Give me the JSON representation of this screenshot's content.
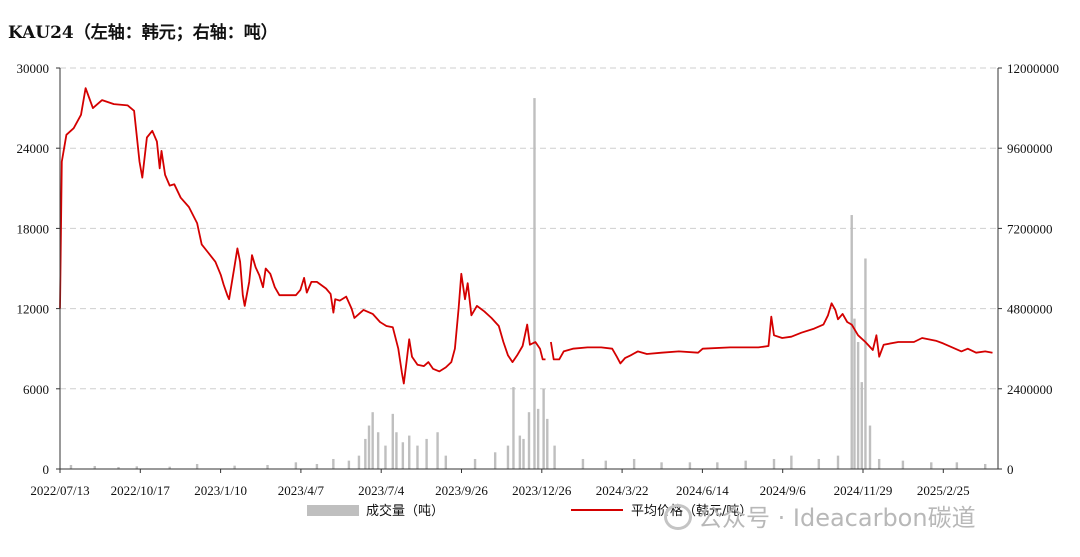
{
  "title": "KAU24（左轴：韩元；右轴：吨）",
  "watermark": "公众号 · Ideacarbon碳道",
  "chart_data": {
    "type": "line+bar",
    "title": "KAU24（左轴：韩元；右轴：吨）",
    "x_tick_labels": [
      "2022/07/13",
      "2022/10/17",
      "2023/1/10",
      "2023/4/7",
      "2023/7/4",
      "2023/9/26",
      "2023/12/26",
      "2024/3/22",
      "2024/6/14",
      "2024/9/6",
      "2024/11/29",
      "2025/2/25"
    ],
    "left_axis": {
      "min": 0,
      "max": 30000,
      "ticks": [
        0,
        6000,
        12000,
        18000,
        24000,
        30000
      ]
    },
    "right_axis": {
      "min": 0,
      "max": 12000000,
      "ticks": [
        0,
        2400000,
        4800000,
        7200000,
        9600000,
        12000000
      ]
    },
    "grid": "horizontal dashed",
    "legend_position": "bottom",
    "series": [
      {
        "name": "平均价格（韩元/吨）",
        "type": "line",
        "axis": "left",
        "color": "#d40000",
        "points": [
          [
            "2022-07-13",
            12000
          ],
          [
            "2022-07-15",
            23000
          ],
          [
            "2022-07-20",
            25000
          ],
          [
            "2022-07-28",
            25500
          ],
          [
            "2022-08-05",
            26500
          ],
          [
            "2022-08-10",
            28500
          ],
          [
            "2022-08-18",
            27000
          ],
          [
            "2022-08-28",
            27600
          ],
          [
            "2022-09-10",
            27300
          ],
          [
            "2022-09-25",
            27200
          ],
          [
            "2022-10-02",
            26800
          ],
          [
            "2022-10-08",
            23000
          ],
          [
            "2022-10-11",
            21800
          ],
          [
            "2022-10-16",
            24800
          ],
          [
            "2022-10-22",
            25300
          ],
          [
            "2022-10-27",
            24500
          ],
          [
            "2022-10-30",
            22500
          ],
          [
            "2022-11-01",
            23800
          ],
          [
            "2022-11-05",
            22000
          ],
          [
            "2022-11-10",
            21200
          ],
          [
            "2022-11-15",
            21300
          ],
          [
            "2022-11-22",
            20300
          ],
          [
            "2022-12-01",
            19600
          ],
          [
            "2022-12-10",
            18400
          ],
          [
            "2022-12-15",
            16800
          ],
          [
            "2022-12-22",
            16200
          ],
          [
            "2022-12-30",
            15500
          ],
          [
            "2023-01-05",
            14500
          ],
          [
            "2023-01-08",
            13800
          ],
          [
            "2023-01-12",
            13000
          ],
          [
            "2023-01-14",
            12700
          ],
          [
            "2023-01-20",
            15200
          ],
          [
            "2023-01-23",
            16500
          ],
          [
            "2023-01-26",
            15500
          ],
          [
            "2023-01-29",
            13000
          ],
          [
            "2023-01-31",
            12200
          ],
          [
            "2023-02-05",
            14000
          ],
          [
            "2023-02-08",
            16000
          ],
          [
            "2023-02-12",
            15100
          ],
          [
            "2023-02-16",
            14500
          ],
          [
            "2023-02-20",
            13600
          ],
          [
            "2023-02-23",
            15000
          ],
          [
            "2023-02-28",
            14600
          ],
          [
            "2023-03-05",
            13600
          ],
          [
            "2023-03-10",
            13000
          ],
          [
            "2023-03-20",
            13000
          ],
          [
            "2023-03-28",
            13000
          ],
          [
            "2023-04-02",
            13400
          ],
          [
            "2023-04-06",
            14300
          ],
          [
            "2023-04-09",
            13200
          ],
          [
            "2023-04-14",
            14000
          ],
          [
            "2023-04-20",
            14000
          ],
          [
            "2023-04-30",
            13500
          ],
          [
            "2023-05-05",
            13100
          ],
          [
            "2023-05-08",
            11700
          ],
          [
            "2023-05-10",
            12700
          ],
          [
            "2023-05-15",
            12600
          ],
          [
            "2023-05-22",
            12900
          ],
          [
            "2023-05-28",
            12000
          ],
          [
            "2023-05-31",
            11300
          ],
          [
            "2023-06-10",
            11900
          ],
          [
            "2023-06-20",
            11600
          ],
          [
            "2023-06-28",
            11000
          ],
          [
            "2023-07-05",
            10700
          ],
          [
            "2023-07-12",
            10600
          ],
          [
            "2023-07-18",
            9000
          ],
          [
            "2023-07-22",
            7200
          ],
          [
            "2023-07-24",
            6400
          ],
          [
            "2023-07-27",
            8000
          ],
          [
            "2023-07-30",
            9700
          ],
          [
            "2023-08-02",
            8400
          ],
          [
            "2023-08-08",
            7800
          ],
          [
            "2023-08-15",
            7700
          ],
          [
            "2023-08-20",
            8000
          ],
          [
            "2023-08-25",
            7500
          ],
          [
            "2023-09-01",
            7300
          ],
          [
            "2023-09-08",
            7600
          ],
          [
            "2023-09-14",
            8000
          ],
          [
            "2023-09-18",
            9000
          ],
          [
            "2023-09-22",
            12000
          ],
          [
            "2023-09-25",
            14600
          ],
          [
            "2023-09-29",
            12700
          ],
          [
            "2023-10-02",
            13900
          ],
          [
            "2023-10-06",
            11500
          ],
          [
            "2023-10-12",
            12200
          ],
          [
            "2023-10-20",
            11800
          ],
          [
            "2023-10-28",
            11300
          ],
          [
            "2023-11-05",
            10700
          ],
          [
            "2023-11-10",
            9500
          ],
          [
            "2023-11-15",
            8500
          ],
          [
            "2023-11-20",
            8000
          ],
          [
            "2023-11-25",
            8500
          ],
          [
            "2023-12-01",
            9200
          ],
          [
            "2023-12-06",
            10800
          ],
          [
            "2023-12-09",
            9300
          ],
          [
            "2023-12-15",
            9500
          ],
          [
            "2023-12-20",
            9000
          ],
          [
            "2023-12-23",
            8200
          ],
          [
            "2023-12-26",
            8200
          ],
          null,
          [
            "2024-01-01",
            9500
          ],
          [
            "2024-01-04",
            8200
          ],
          [
            "2024-01-10",
            8200
          ],
          [
            "2024-01-15",
            8800
          ],
          [
            "2024-01-25",
            9000
          ],
          [
            "2024-02-10",
            9100
          ],
          [
            "2024-02-25",
            9100
          ],
          [
            "2024-03-08",
            9000
          ],
          [
            "2024-03-13",
            8400
          ],
          [
            "2024-03-17",
            7900
          ],
          [
            "2024-03-22",
            8300
          ],
          [
            "2024-03-28",
            8500
          ],
          [
            "2024-04-05",
            8800
          ],
          [
            "2024-04-15",
            8600
          ],
          [
            "2024-05-01",
            8700
          ],
          [
            "2024-05-20",
            8800
          ],
          [
            "2024-06-10",
            8700
          ],
          [
            "2024-06-15",
            9000
          ],
          [
            "2024-07-15",
            9100
          ],
          [
            "2024-08-15",
            9100
          ],
          [
            "2024-08-26",
            9200
          ],
          [
            "2024-08-29",
            11400
          ],
          [
            "2024-09-01",
            10000
          ],
          [
            "2024-09-10",
            9800
          ],
          [
            "2024-09-20",
            9900
          ],
          [
            "2024-10-01",
            10200
          ],
          [
            "2024-10-15",
            10500
          ],
          [
            "2024-10-25",
            10800
          ],
          [
            "2024-10-30",
            11500
          ],
          [
            "2024-11-03",
            12400
          ],
          [
            "2024-11-07",
            11900
          ],
          [
            "2024-11-10",
            11200
          ],
          [
            "2024-11-15",
            11600
          ],
          [
            "2024-11-20",
            11000
          ],
          [
            "2024-11-25",
            10800
          ],
          [
            "2024-12-02",
            10000
          ],
          [
            "2024-12-10",
            9500
          ],
          [
            "2024-12-18",
            8900
          ],
          [
            "2024-12-22",
            10000
          ],
          [
            "2024-12-25",
            8400
          ],
          [
            "2024-12-30",
            9300
          ],
          [
            "2025-01-15",
            9500
          ],
          [
            "2025-02-01",
            9500
          ],
          [
            "2025-02-10",
            9800
          ],
          [
            "2025-02-25",
            9600
          ],
          [
            "2025-03-05",
            9400
          ],
          [
            "2025-03-15",
            9100
          ],
          [
            "2025-03-25",
            8800
          ],
          [
            "2025-04-01",
            9000
          ],
          [
            "2025-04-10",
            8700
          ],
          [
            "2025-04-20",
            8800
          ],
          [
            "2025-04-28",
            8700
          ]
        ]
      },
      {
        "name": "成交量（吨）",
        "type": "bar",
        "axis": "right",
        "color": "#bfbfbf",
        "points": [
          [
            "2022-07-25",
            120000
          ],
          [
            "2022-08-20",
            90000
          ],
          [
            "2022-09-15",
            60000
          ],
          [
            "2022-10-05",
            80000
          ],
          [
            "2022-11-10",
            70000
          ],
          [
            "2022-12-10",
            150000
          ],
          [
            "2023-01-20",
            100000
          ],
          [
            "2023-02-25",
            120000
          ],
          [
            "2023-03-28",
            200000
          ],
          [
            "2023-04-20",
            150000
          ],
          [
            "2023-05-08",
            300000
          ],
          [
            "2023-05-25",
            250000
          ],
          [
            "2023-06-05",
            400000
          ],
          [
            "2023-06-12",
            900000
          ],
          [
            "2023-06-16",
            1300000
          ],
          [
            "2023-06-20",
            1700000
          ],
          [
            "2023-06-26",
            1100000
          ],
          [
            "2023-07-04",
            700000
          ],
          [
            "2023-07-12",
            1650000
          ],
          [
            "2023-07-16",
            1100000
          ],
          [
            "2023-07-23",
            800000
          ],
          [
            "2023-07-30",
            1000000
          ],
          [
            "2023-08-08",
            700000
          ],
          [
            "2023-08-18",
            900000
          ],
          [
            "2023-08-30",
            1100000
          ],
          [
            "2023-09-08",
            400000
          ],
          [
            "2023-10-10",
            300000
          ],
          [
            "2023-11-01",
            500000
          ],
          [
            "2023-11-15",
            700000
          ],
          [
            "2023-11-21",
            2450000
          ],
          [
            "2023-11-28",
            1000000
          ],
          [
            "2023-12-02",
            900000
          ],
          [
            "2023-12-08",
            1700000
          ],
          [
            "2023-12-14",
            11100000
          ],
          [
            "2023-12-18",
            1800000
          ],
          [
            "2023-12-24",
            2400000
          ],
          [
            "2023-12-28",
            1500000
          ],
          [
            "2024-01-05",
            700000
          ],
          [
            "2024-02-05",
            300000
          ],
          [
            "2024-03-01",
            250000
          ],
          [
            "2024-04-01",
            300000
          ],
          [
            "2024-05-01",
            200000
          ],
          [
            "2024-06-01",
            200000
          ],
          [
            "2024-07-01",
            200000
          ],
          [
            "2024-08-01",
            250000
          ],
          [
            "2024-09-01",
            300000
          ],
          [
            "2024-09-20",
            400000
          ],
          [
            "2024-10-20",
            300000
          ],
          [
            "2024-11-10",
            400000
          ],
          [
            "2024-11-25",
            7600000
          ],
          [
            "2024-11-28",
            4500000
          ],
          [
            "2024-12-02",
            3800000
          ],
          [
            "2024-12-06",
            2600000
          ],
          [
            "2024-12-10",
            6300000
          ],
          [
            "2024-12-15",
            1300000
          ],
          [
            "2024-12-25",
            300000
          ],
          [
            "2025-01-20",
            250000
          ],
          [
            "2025-02-20",
            200000
          ],
          [
            "2025-03-20",
            200000
          ],
          [
            "2025-04-20",
            150000
          ]
        ]
      }
    ]
  }
}
